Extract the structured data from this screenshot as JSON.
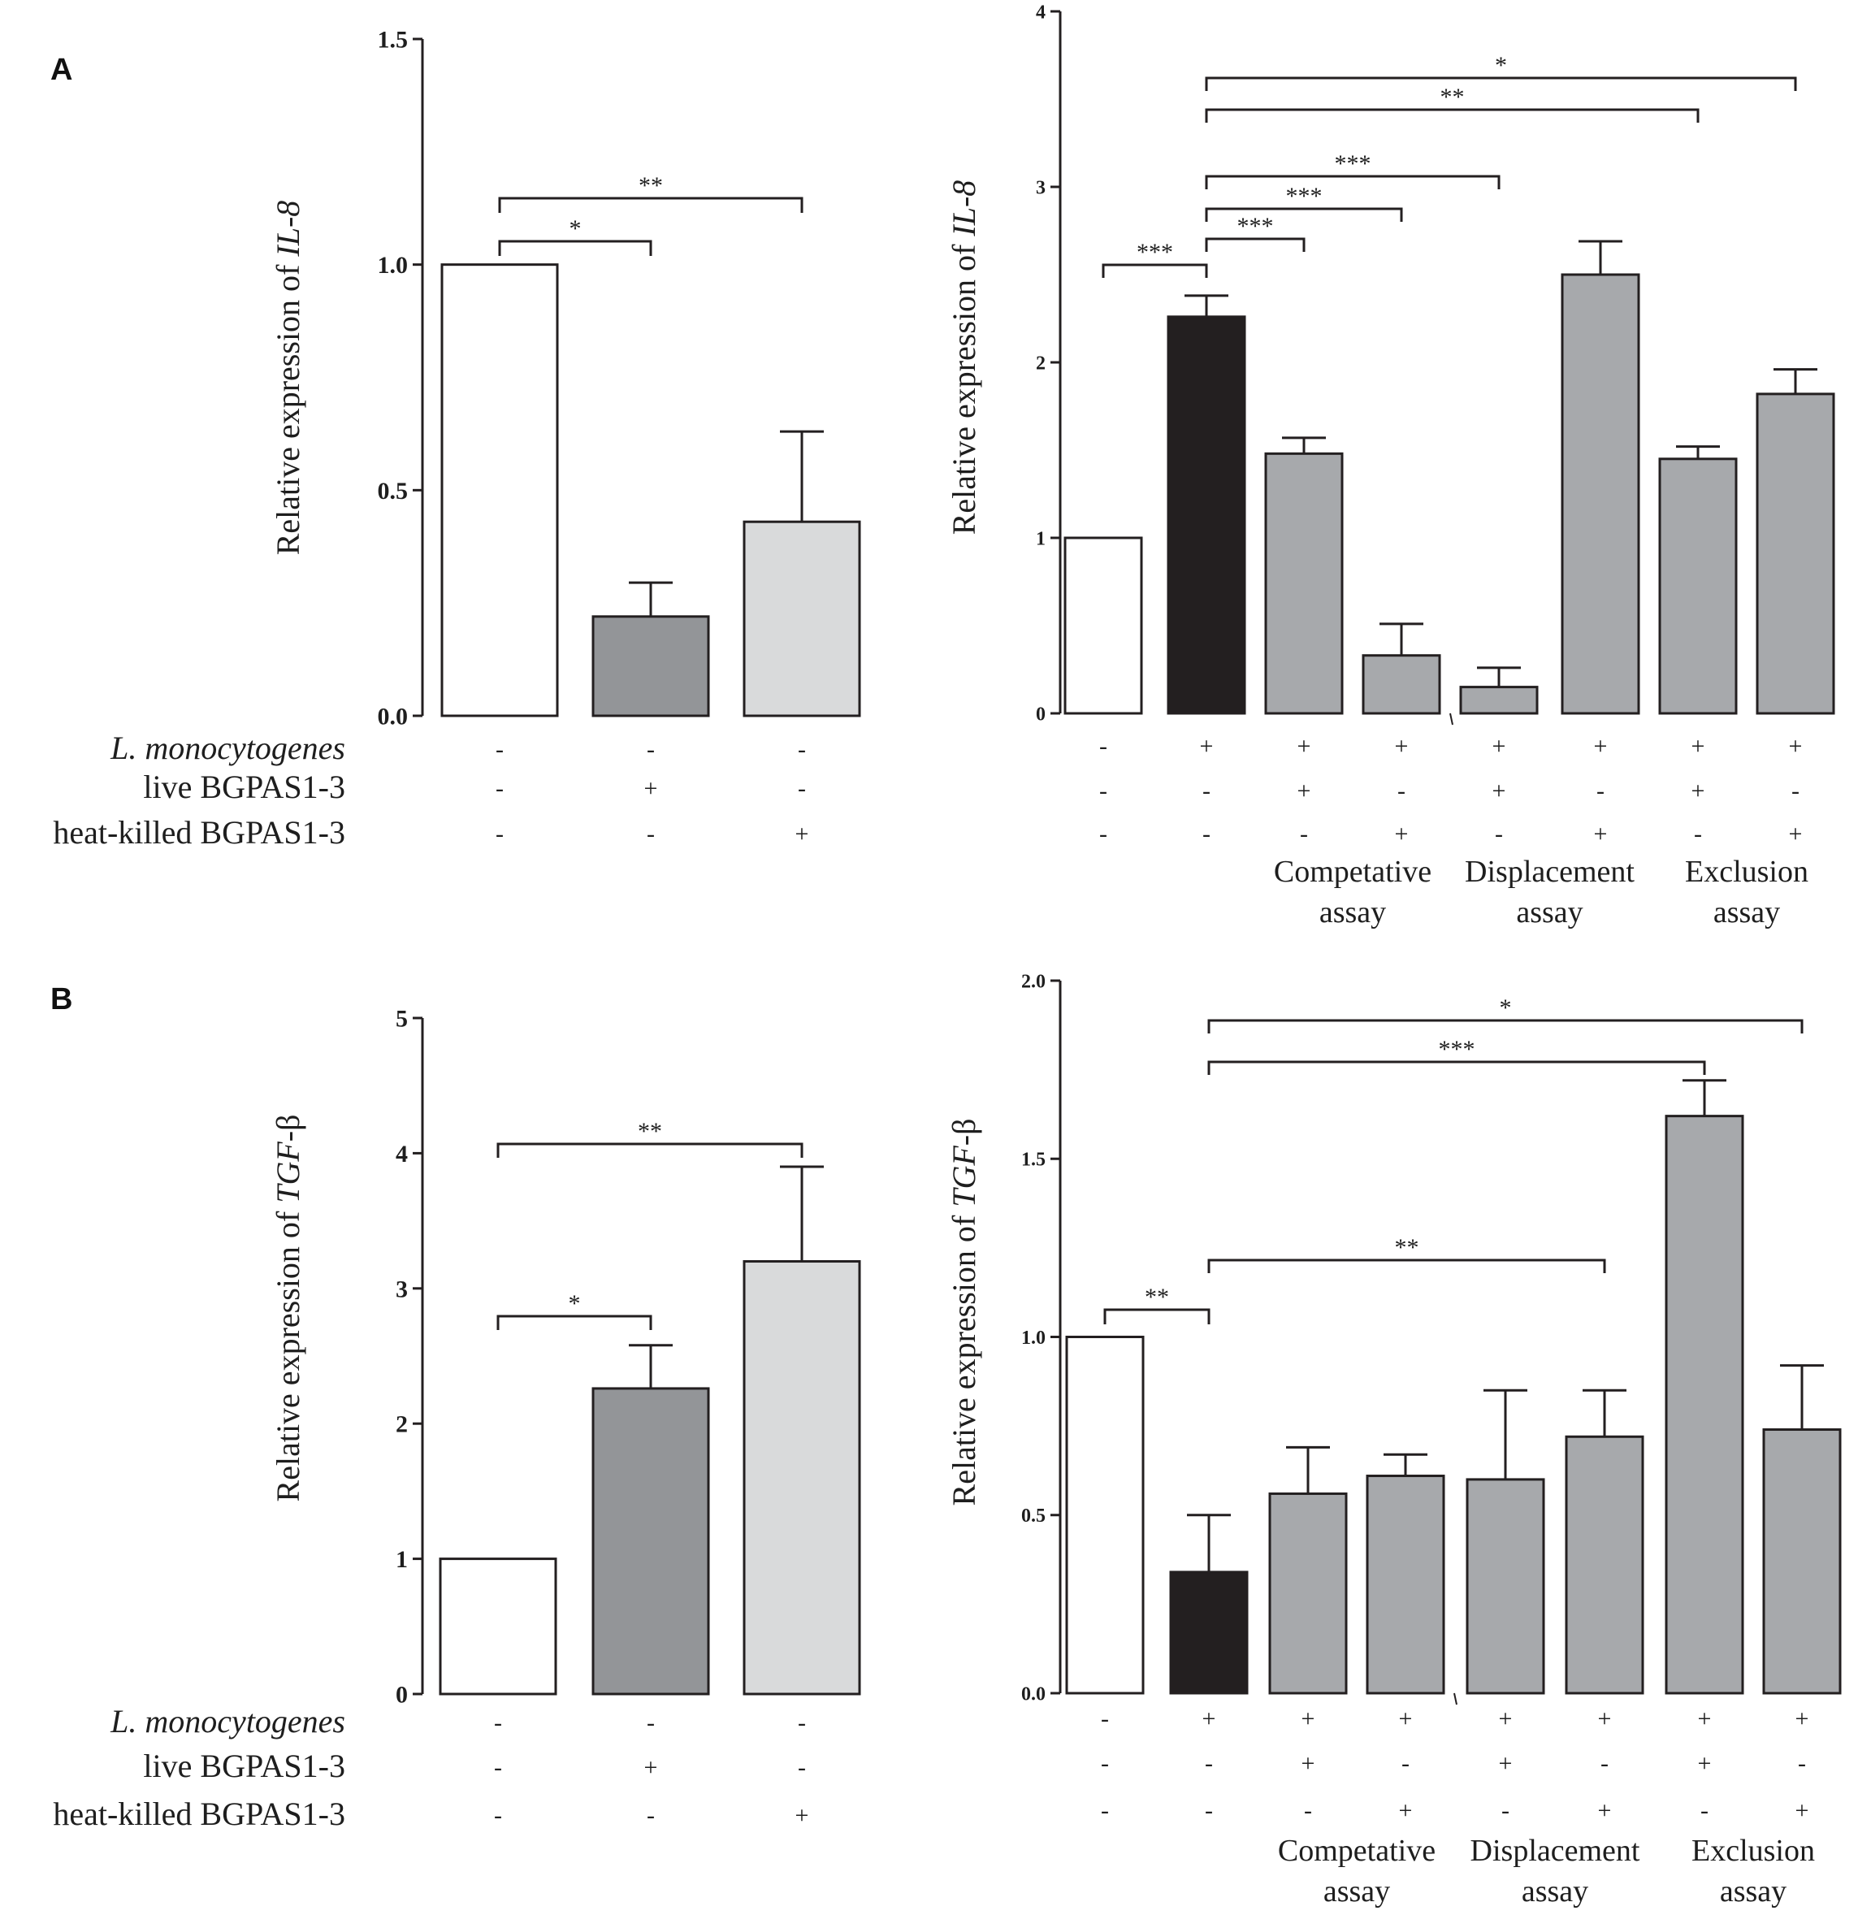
{
  "figure": {
    "panels": [
      {
        "label": "A"
      },
      {
        "label": "B"
      }
    ],
    "colors": {
      "control": "#ffffff",
      "live": "#939598",
      "heat_killed": "#d9dadb",
      "listeria": "#231f20",
      "combination": "#a7a9ac",
      "stroke": "#231f20"
    },
    "row_labels": [
      "L. monocytogenes",
      "live BGPAS1-3",
      "heat-killed BGPAS1-3"
    ]
  },
  "chart_data": [
    {
      "id": "A-left",
      "panel": "A",
      "type": "bar",
      "ylabel_prefix": "Relative expression of ",
      "ylabel_gene": "IL-8",
      "ylim": [
        0,
        1.5
      ],
      "ticks": [
        "0.0",
        "0.5",
        "1.0",
        "1.5"
      ],
      "tick_values": [
        0,
        0.5,
        1.0,
        1.5
      ],
      "bars": [
        {
          "value": 1.0,
          "error": 0,
          "color": "control"
        },
        {
          "value": 0.22,
          "error": 0.075,
          "color": "live"
        },
        {
          "value": 0.43,
          "error": 0.2,
          "color": "heat_killed"
        }
      ],
      "conditions": [
        [
          "-",
          "-",
          "-"
        ],
        [
          "-",
          "+",
          "-"
        ],
        [
          "-",
          "-",
          "+"
        ]
      ],
      "significance": [
        {
          "from": 0,
          "to": 1,
          "label": "*"
        },
        {
          "from": 0,
          "to": 2,
          "label": "**"
        }
      ],
      "groups": []
    },
    {
      "id": "A-right",
      "panel": "A",
      "type": "bar",
      "ylabel_prefix": "Relative expression of ",
      "ylabel_gene": "IL-8",
      "ylim": [
        0,
        4
      ],
      "ticks": [
        "0",
        "1",
        "2",
        "3",
        "4"
      ],
      "tick_values": [
        0,
        1,
        2,
        3,
        4
      ],
      "bars": [
        {
          "value": 1.0,
          "error": 0,
          "color": "control"
        },
        {
          "value": 2.26,
          "error": 0.12,
          "color": "listeria"
        },
        {
          "value": 1.48,
          "error": 0.09,
          "color": "combination"
        },
        {
          "value": 0.33,
          "error": 0.18,
          "color": "combination"
        },
        {
          "value": 0.15,
          "error": 0.11,
          "color": "combination"
        },
        {
          "value": 2.5,
          "error": 0.19,
          "color": "combination"
        },
        {
          "value": 1.45,
          "error": 0.07,
          "color": "combination"
        },
        {
          "value": 1.82,
          "error": 0.14,
          "color": "combination"
        }
      ],
      "conditions": [
        [
          "-",
          "+",
          "+",
          "+",
          "+",
          "+",
          "+",
          "+"
        ],
        [
          "-",
          "-",
          "+",
          "-",
          "+",
          "-",
          "+",
          "-"
        ],
        [
          "-",
          "-",
          "-",
          "+",
          "-",
          "+",
          "-",
          "+"
        ]
      ],
      "significance": [
        {
          "from": 0,
          "to": 1,
          "label": "***"
        },
        {
          "from": 1,
          "to": 2,
          "label": "***"
        },
        {
          "from": 1,
          "to": 3,
          "label": "***"
        },
        {
          "from": 1,
          "to": 4,
          "label": "***"
        },
        {
          "from": 1,
          "to": 6,
          "label": "**"
        },
        {
          "from": 1,
          "to": 7,
          "label": "*"
        }
      ],
      "groups": [
        {
          "bars": [
            2,
            3
          ],
          "line1": "Competative",
          "line2": "assay"
        },
        {
          "bars": [
            4,
            5
          ],
          "line1": "Displacement",
          "line2": "assay"
        },
        {
          "bars": [
            6,
            7
          ],
          "line1": "Exclusion",
          "line2": "assay"
        }
      ]
    },
    {
      "id": "B-left",
      "panel": "B",
      "type": "bar",
      "ylabel_prefix": "Relative expression of ",
      "ylabel_gene": "TGF",
      "ylabel_suffix": "-β",
      "ylim": [
        0,
        5
      ],
      "ticks": [
        "0",
        "1",
        "2",
        "3",
        "4",
        "5"
      ],
      "tick_values": [
        0,
        1,
        2,
        3,
        4,
        5
      ],
      "bars": [
        {
          "value": 1.0,
          "error": 0,
          "color": "control"
        },
        {
          "value": 2.26,
          "error": 0.32,
          "color": "live"
        },
        {
          "value": 3.2,
          "error": 0.7,
          "color": "heat_killed"
        }
      ],
      "conditions": [
        [
          "-",
          "-",
          "-"
        ],
        [
          "-",
          "+",
          "-"
        ],
        [
          "-",
          "-",
          "+"
        ]
      ],
      "significance": [
        {
          "from": 0,
          "to": 1,
          "label": "*"
        },
        {
          "from": 0,
          "to": 2,
          "label": "**"
        }
      ],
      "groups": []
    },
    {
      "id": "B-right",
      "panel": "B",
      "type": "bar",
      "ylabel_prefix": "Relative expression of ",
      "ylabel_gene": "TGF",
      "ylabel_suffix": "-β",
      "ylim": [
        0,
        2.0
      ],
      "ticks": [
        "0.0",
        "0.5",
        "1.0",
        "1.5",
        "2.0"
      ],
      "tick_values": [
        0,
        0.5,
        1.0,
        1.5,
        2.0
      ],
      "bars": [
        {
          "value": 1.0,
          "error": 0,
          "color": "control"
        },
        {
          "value": 0.34,
          "error": 0.16,
          "color": "listeria"
        },
        {
          "value": 0.56,
          "error": 0.13,
          "color": "combination"
        },
        {
          "value": 0.61,
          "error": 0.06,
          "color": "combination"
        },
        {
          "value": 0.6,
          "error": 0.25,
          "color": "combination"
        },
        {
          "value": 0.72,
          "error": 0.13,
          "color": "combination"
        },
        {
          "value": 1.62,
          "error": 0.1,
          "color": "combination"
        },
        {
          "value": 0.74,
          "error": 0.18,
          "color": "combination"
        }
      ],
      "conditions": [
        [
          "-",
          "+",
          "+",
          "+",
          "+",
          "+",
          "+",
          "+"
        ],
        [
          "-",
          "-",
          "+",
          "-",
          "+",
          "-",
          "+",
          "-"
        ],
        [
          "-",
          "-",
          "-",
          "+",
          "-",
          "+",
          "-",
          "+"
        ]
      ],
      "significance": [
        {
          "from": 0,
          "to": 1,
          "label": "**"
        },
        {
          "from": 1,
          "to": 5,
          "label": "**"
        },
        {
          "from": 1,
          "to": 6,
          "label": "***"
        },
        {
          "from": 1,
          "to": 7,
          "label": "*"
        }
      ],
      "groups": [
        {
          "bars": [
            2,
            3
          ],
          "line1": "Competative",
          "line2": "assay"
        },
        {
          "bars": [
            4,
            5
          ],
          "line1": "Displacement",
          "line2": "assay"
        },
        {
          "bars": [
            6,
            7
          ],
          "line1": "Exclusion",
          "line2": "assay"
        }
      ]
    }
  ]
}
